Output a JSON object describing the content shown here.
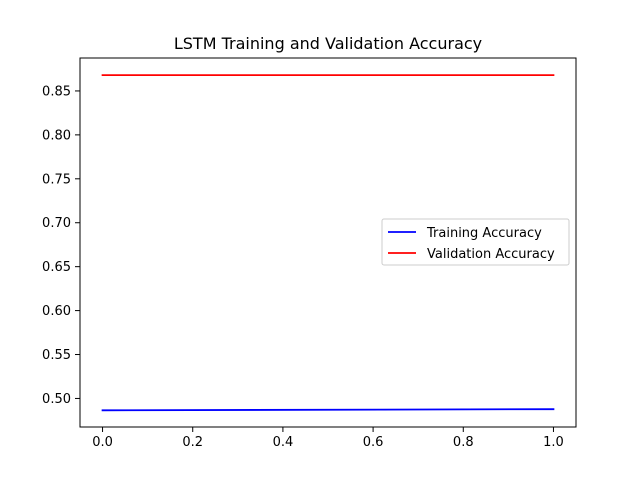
{
  "chart_data": {
    "type": "line",
    "title": "LSTM Training and Validation Accuracy",
    "xlabel": "",
    "ylabel": "",
    "xlim": [
      -0.05,
      1.05
    ],
    "ylim": [
      0.4675,
      0.8875
    ],
    "xticks": [
      0.0,
      0.2,
      0.4,
      0.6,
      0.8,
      1.0
    ],
    "xtick_labels": [
      "0.0",
      "0.2",
      "0.4",
      "0.6",
      "0.8",
      "1.0"
    ],
    "yticks": [
      0.5,
      0.55,
      0.6,
      0.65,
      0.7,
      0.75,
      0.8,
      0.85
    ],
    "ytick_labels": [
      "0.50",
      "0.55",
      "0.60",
      "0.65",
      "0.70",
      "0.75",
      "0.80",
      "0.85"
    ],
    "grid": false,
    "legend_position": "center-right",
    "series": [
      {
        "name": "Training Accuracy",
        "color": "#0000ff",
        "x": [
          0,
          1
        ],
        "y": [
          0.4865,
          0.4878
        ]
      },
      {
        "name": "Validation Accuracy",
        "color": "#ff0000",
        "x": [
          0,
          1
        ],
        "y": [
          0.868,
          0.868
        ]
      }
    ]
  }
}
